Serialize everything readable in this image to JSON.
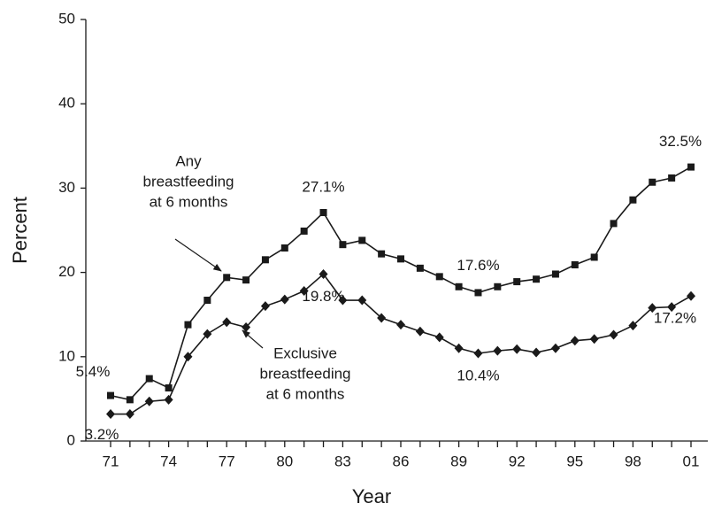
{
  "chart_data": {
    "type": "line",
    "x_label": "Year",
    "y_label": "Percent",
    "categories": [
      "71",
      null,
      null,
      "74",
      null,
      null,
      "77",
      null,
      null,
      "80",
      null,
      null,
      "83",
      null,
      null,
      "86",
      null,
      null,
      "89",
      null,
      null,
      "92",
      null,
      null,
      "95",
      null,
      null,
      "98",
      null,
      null,
      "01"
    ],
    "ylim": [
      0,
      50
    ],
    "yticks": [
      0,
      10,
      20,
      30,
      40,
      50
    ],
    "grid": false,
    "series": [
      {
        "name": "Any breastfeeding at 6 months",
        "color": "#1a1a1a",
        "marker": "square",
        "values": [
          5.4,
          4.9,
          7.4,
          6.3,
          13.8,
          16.7,
          19.4,
          19.1,
          21.5,
          22.9,
          24.9,
          27.1,
          23.3,
          23.8,
          22.2,
          21.6,
          20.5,
          19.5,
          18.3,
          17.6,
          18.3,
          18.9,
          19.2,
          19.8,
          20.9,
          21.8,
          25.8,
          28.6,
          30.7,
          31.2,
          32.5
        ],
        "value_labels": [
          "5.4%",
          null,
          null,
          null,
          null,
          null,
          null,
          null,
          null,
          null,
          null,
          "27.1%",
          null,
          null,
          null,
          null,
          null,
          null,
          null,
          "17.6%",
          null,
          null,
          null,
          null,
          null,
          null,
          null,
          null,
          null,
          null,
          "32.5%"
        ]
      },
      {
        "name": "Exclusive breastfeeding at 6 months",
        "color": "#1a1a1a",
        "marker": "diamond",
        "values": [
          3.2,
          3.2,
          4.7,
          4.9,
          10.0,
          12.7,
          14.1,
          13.5,
          16.0,
          16.8,
          17.8,
          19.8,
          16.7,
          16.7,
          14.6,
          13.8,
          13.0,
          12.3,
          11.0,
          10.4,
          10.7,
          10.9,
          10.5,
          11.0,
          11.9,
          12.1,
          12.6,
          13.7,
          15.8,
          15.9,
          17.2
        ],
        "value_labels": [
          "3.2%",
          null,
          null,
          null,
          null,
          null,
          null,
          null,
          null,
          null,
          null,
          "19.8%",
          null,
          null,
          null,
          null,
          null,
          null,
          null,
          "10.4%",
          null,
          null,
          null,
          null,
          null,
          null,
          null,
          null,
          null,
          null,
          "17.2%"
        ]
      }
    ],
    "annotations": [
      {
        "lines": [
          "Any",
          "breastfeeding",
          "at 6 months"
        ]
      },
      {
        "lines": [
          "Exclusive",
          "breastfeeding",
          "at 6 months"
        ]
      }
    ]
  }
}
